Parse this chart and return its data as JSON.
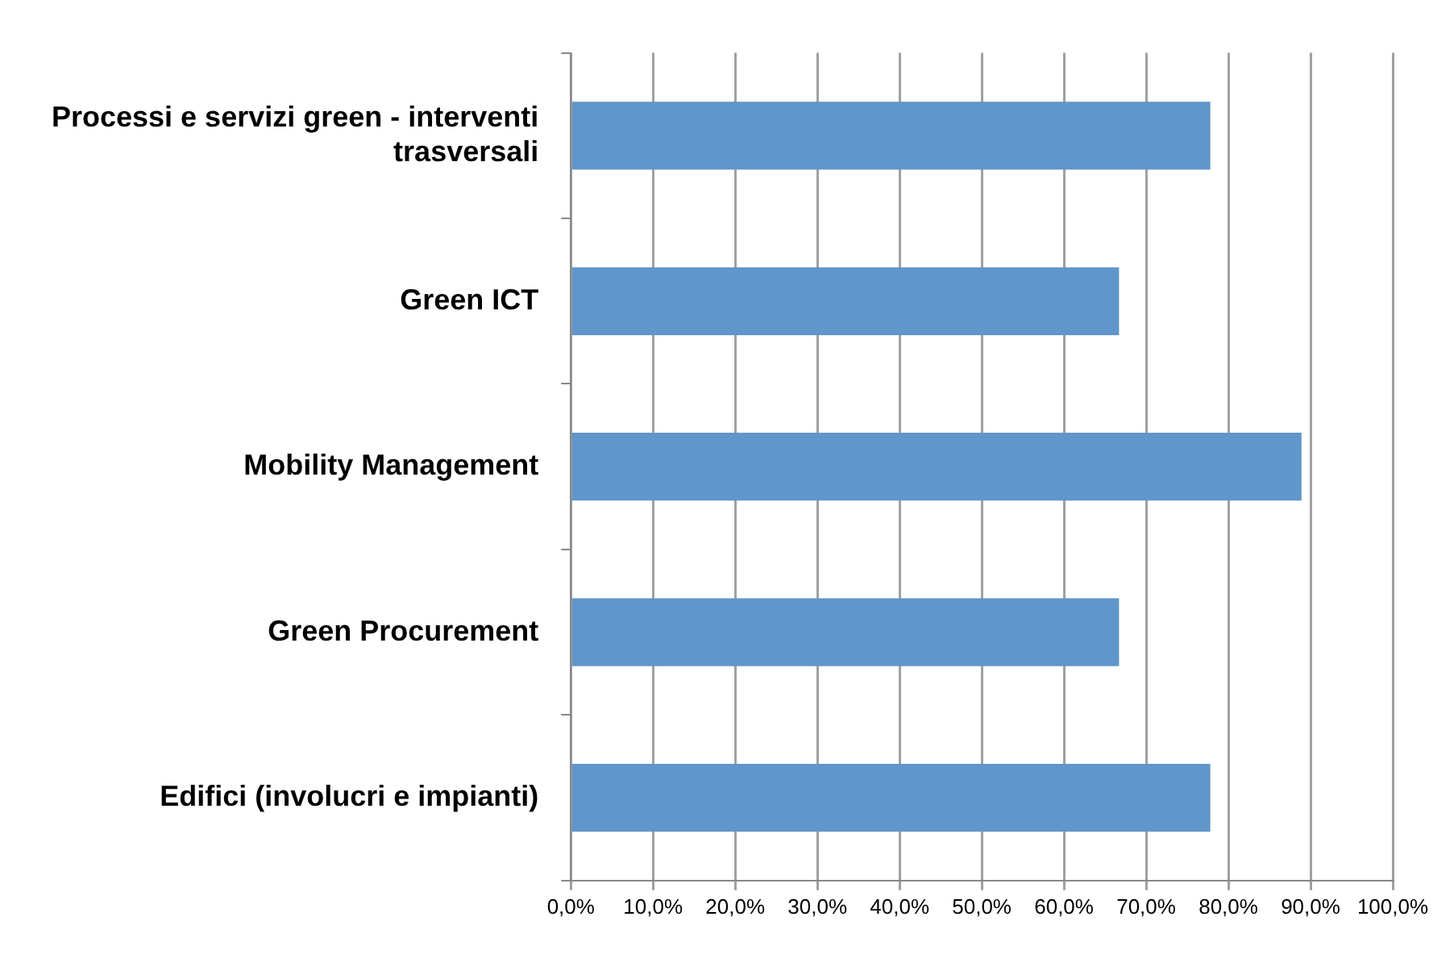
{
  "chart_data": {
    "type": "bar",
    "orientation": "horizontal",
    "categories": [
      "Processi e servizi green - interventi trasversali",
      "Green ICT",
      "Mobility Management",
      "Green Procurement",
      "Edifici (involucri e impianti)"
    ],
    "values": [
      77.8,
      66.7,
      88.9,
      66.7,
      77.8
    ],
    "color": "#6096c9",
    "xlim": [
      0,
      100
    ],
    "xticks": [
      {
        "value": 0,
        "label": "0,0%"
      },
      {
        "value": 10,
        "label": "10,0%"
      },
      {
        "value": 20,
        "label": "20,0%"
      },
      {
        "value": 30,
        "label": "30,0%"
      },
      {
        "value": 40,
        "label": "40,0%"
      },
      {
        "value": 50,
        "label": "50,0%"
      },
      {
        "value": 60,
        "label": "60,0%"
      },
      {
        "value": 70,
        "label": "70,0%"
      },
      {
        "value": 80,
        "label": "80,0%"
      },
      {
        "value": 90,
        "label": "90,0%"
      },
      {
        "value": 100,
        "label": "100,0%"
      }
    ],
    "grid": "x",
    "legend": false
  }
}
